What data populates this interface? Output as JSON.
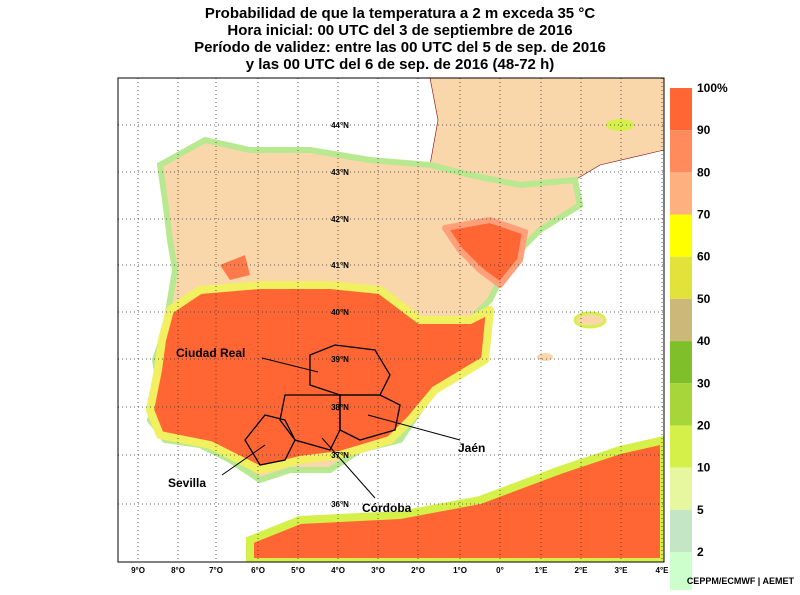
{
  "title": [
    "Probabilidad de que la temperatura a 2 m exceda 35 °C",
    "Hora inicial: 00 UTC del 3 de septiembre de 2016",
    "Período de validez: entre las 00 UTC del 5 de sep. de 2016",
    "y las 00 UTC del 6 de sep. de 2016 (48-72 h)"
  ],
  "latitude_labels": [
    "44°N",
    "43°N",
    "42°N",
    "41°N",
    "40°N",
    "39°N",
    "38°N",
    "37°N",
    "36°N"
  ],
  "longitude_labels": [
    "9°O",
    "8°O",
    "7°O",
    "6°O",
    "5°O",
    "4°O",
    "3°O",
    "2°O",
    "1°O",
    "0°",
    "1°E",
    "2°E",
    "3°E",
    "4°E"
  ],
  "places": [
    "Ciudad Real",
    "Jaén",
    "Sevilla",
    "Córdoba"
  ],
  "legend": {
    "labels": [
      "100%",
      "90",
      "80",
      "70",
      "60",
      "50",
      "40",
      "30",
      "20",
      "10",
      "5",
      "2"
    ],
    "colors": [
      "#ff6633",
      "#ff8a5c",
      "#ffb07f",
      "#ffff00",
      "#e2e23a",
      "#ccb878",
      "#7fbf2a",
      "#a6d63a",
      "#d6f04a",
      "#e6f7a0",
      "#c4e6c4",
      "#ccffcc"
    ]
  },
  "credit": "CEPPM/ECMWF | AEMET"
}
